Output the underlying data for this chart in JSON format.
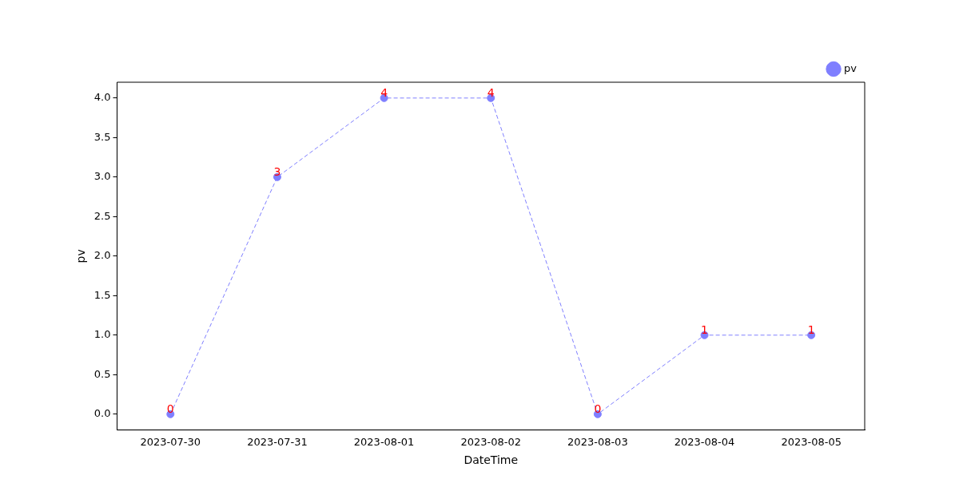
{
  "chart_data": {
    "type": "line",
    "xlabel": "DateTime",
    "ylabel": "pv",
    "categories": [
      "2023-07-30",
      "2023-07-31",
      "2023-08-01",
      "2023-08-02",
      "2023-08-03",
      "2023-08-04",
      "2023-08-05"
    ],
    "series": [
      {
        "name": "pv",
        "color": "#7f7fff",
        "values": [
          0,
          3,
          4,
          4,
          0,
          1,
          1
        ]
      }
    ],
    "ylim": [
      -0.2,
      4.2
    ],
    "yticks": [
      {
        "value": 0,
        "label": "0.0"
      },
      {
        "value": 0.5,
        "label": "0.5"
      },
      {
        "value": 1,
        "label": "1.0"
      },
      {
        "value": 1.5,
        "label": "1.5"
      },
      {
        "value": 2,
        "label": "2.0"
      },
      {
        "value": 2.5,
        "label": "2.5"
      },
      {
        "value": 3,
        "label": "3.0"
      },
      {
        "value": 3.5,
        "label": "3.5"
      },
      {
        "value": 4,
        "label": "4.0"
      }
    ],
    "data_labels": true,
    "legend": "top right",
    "grid": false,
    "marker": "circle",
    "line_style": "dashed"
  }
}
